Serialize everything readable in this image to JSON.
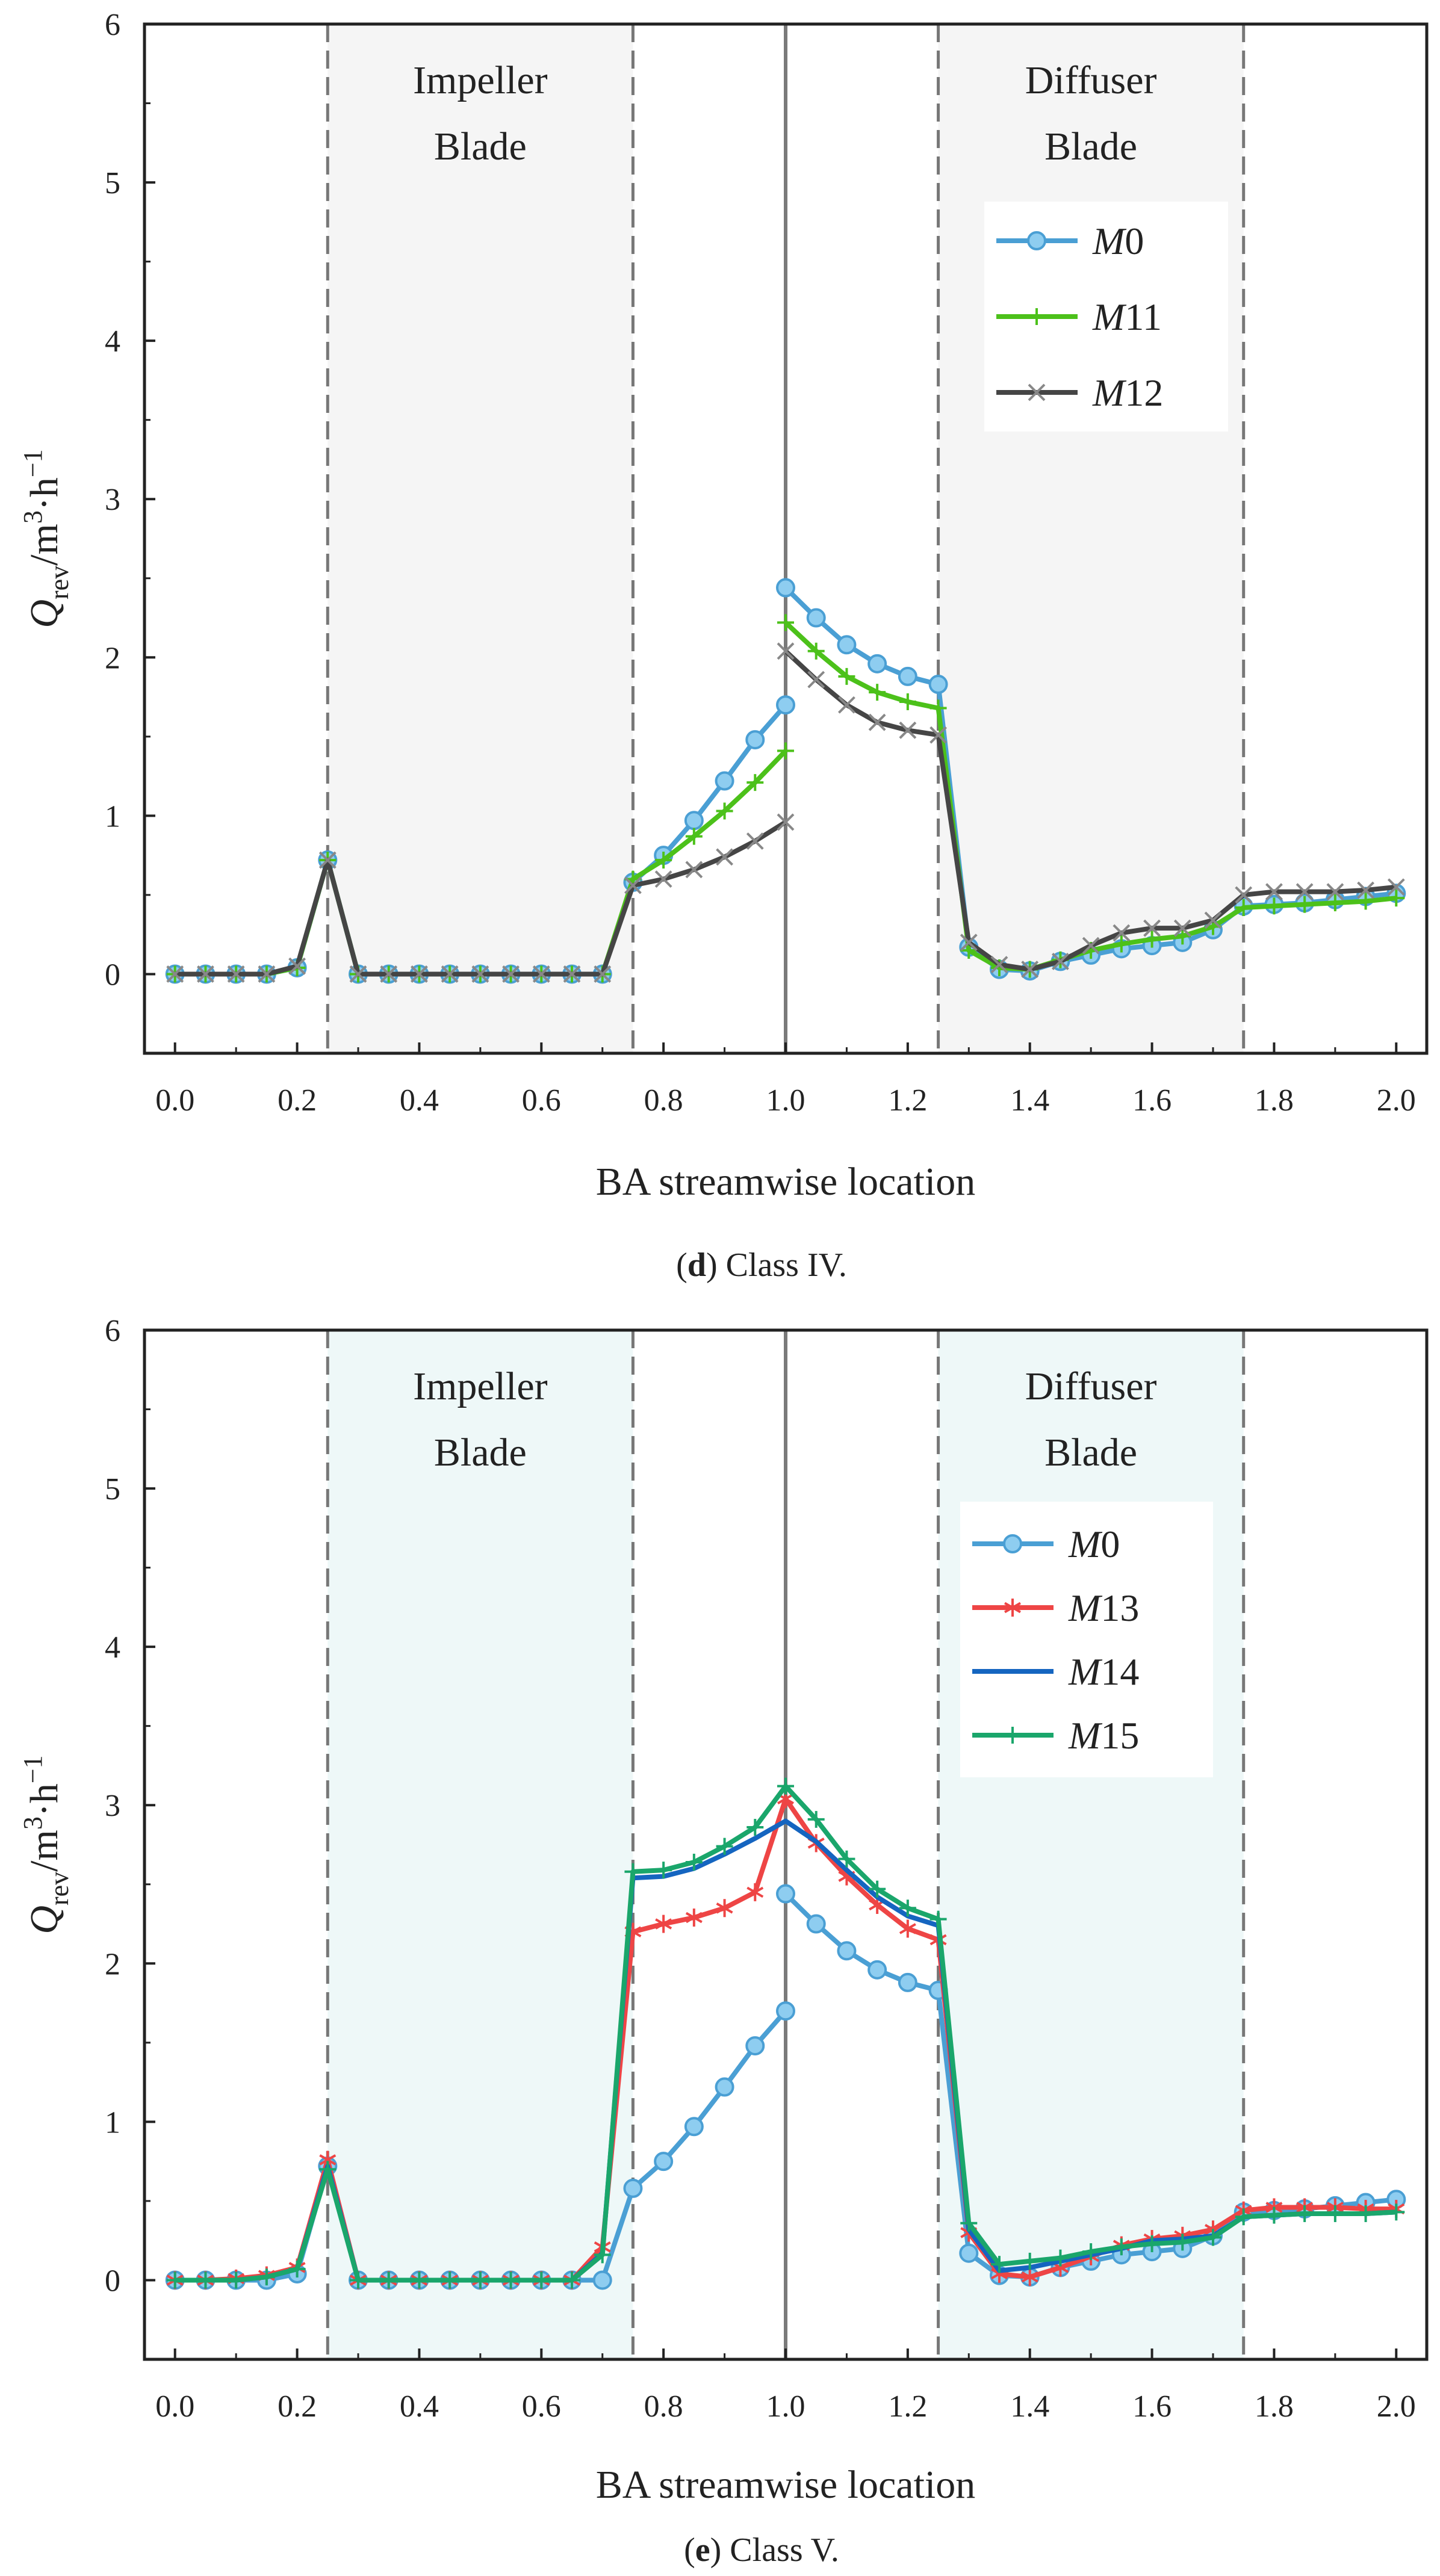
{
  "chart_data": [
    {
      "type": "line",
      "panel_letter": "d",
      "caption": " Class IV.",
      "xlabel": "BA streamwise location",
      "ylabel": "Q_rev/m³·h⁻¹",
      "xlim": [
        -0.05,
        2.05
      ],
      "ylim": [
        -0.5,
        6
      ],
      "xticks": [
        "0.0",
        "0.2",
        "0.4",
        "0.6",
        "0.8",
        "1.0",
        "1.2",
        "1.4",
        "1.6",
        "1.8",
        "2.0"
      ],
      "yticks": [
        "0",
        "1",
        "2",
        "3",
        "4",
        "5",
        "6"
      ],
      "regions": [
        {
          "label_lines": [
            "Impeller",
            "Blade"
          ],
          "x0": 0.25,
          "x1": 0.75,
          "fill": "#f5f5f5"
        },
        {
          "label_lines": [
            "Diffuser",
            "Blade"
          ],
          "x0": 1.25,
          "x1": 1.75,
          "fill": "#f5f5f5"
        }
      ],
      "dashed_lines": [
        0.25,
        0.75,
        1.25,
        1.75
      ],
      "solid_line": 1.0,
      "legend_position": "upper-right",
      "series": [
        {
          "name_italic": "M",
          "name_rest": "0",
          "color": "#4a9fd4",
          "marker": "circle",
          "segments": [
            {
              "x": [
                0.0,
                0.05,
                0.1,
                0.15,
                0.2,
                0.25,
                0.3,
                0.35,
                0.4,
                0.45,
                0.5,
                0.55,
                0.6,
                0.65,
                0.7,
                0.75,
                0.8,
                0.85,
                0.9,
                0.95,
                1.0
              ],
              "y": [
                0,
                0,
                0,
                0,
                0.04,
                0.72,
                0,
                0,
                0,
                0,
                0,
                0,
                0,
                0,
                0,
                0.58,
                0.75,
                0.97,
                1.22,
                1.48,
                1.7
              ]
            },
            {
              "x": [
                1.0,
                1.05,
                1.1,
                1.15,
                1.2,
                1.25,
                1.3,
                1.35,
                1.4,
                1.45,
                1.5,
                1.55,
                1.6,
                1.65,
                1.7,
                1.75,
                1.8,
                1.85,
                1.9,
                1.95,
                2.0
              ],
              "y": [
                2.44,
                2.25,
                2.08,
                1.96,
                1.88,
                1.83,
                0.17,
                0.03,
                0.02,
                0.08,
                0.12,
                0.16,
                0.18,
                0.2,
                0.28,
                0.43,
                0.44,
                0.45,
                0.47,
                0.49,
                0.51
              ]
            }
          ]
        },
        {
          "name_italic": "M",
          "name_rest": "11",
          "color": "#4cc11a",
          "marker": "plus",
          "segments": [
            {
              "x": [
                0.0,
                0.05,
                0.1,
                0.15,
                0.2,
                0.25,
                0.3,
                0.35,
                0.4,
                0.45,
                0.5,
                0.55,
                0.6,
                0.65,
                0.7,
                0.75,
                0.8,
                0.85,
                0.9,
                0.95,
                1.0
              ],
              "y": [
                0,
                0,
                0,
                0,
                0.04,
                0.72,
                0,
                0,
                0,
                0,
                0,
                0,
                0,
                0,
                0,
                0.6,
                0.72,
                0.87,
                1.03,
                1.21,
                1.41
              ]
            },
            {
              "x": [
                1.0,
                1.05,
                1.1,
                1.15,
                1.2,
                1.25,
                1.3,
                1.35,
                1.4,
                1.45,
                1.5,
                1.55,
                1.6,
                1.65,
                1.7,
                1.75,
                1.8,
                1.85,
                1.9,
                1.95,
                2.0
              ],
              "y": [
                2.22,
                2.04,
                1.88,
                1.78,
                1.72,
                1.68,
                0.15,
                0.04,
                0.03,
                0.09,
                0.15,
                0.19,
                0.22,
                0.24,
                0.3,
                0.42,
                0.43,
                0.44,
                0.45,
                0.46,
                0.48
              ]
            }
          ]
        },
        {
          "name_italic": "M",
          "name_rest": "12",
          "color": "#454545",
          "marker": "x",
          "segments": [
            {
              "x": [
                0.0,
                0.05,
                0.1,
                0.15,
                0.2,
                0.25,
                0.3,
                0.35,
                0.4,
                0.45,
                0.5,
                0.55,
                0.6,
                0.65,
                0.7,
                0.75,
                0.8,
                0.85,
                0.9,
                0.95,
                1.0
              ],
              "y": [
                0,
                0,
                0,
                0,
                0.05,
                0.72,
                0,
                0,
                0,
                0,
                0,
                0,
                0,
                0,
                0,
                0.56,
                0.6,
                0.66,
                0.74,
                0.84,
                0.96
              ]
            },
            {
              "x": [
                1.0,
                1.05,
                1.1,
                1.15,
                1.2,
                1.25,
                1.3,
                1.35,
                1.4,
                1.45,
                1.5,
                1.55,
                1.6,
                1.65,
                1.7,
                1.75,
                1.8,
                1.85,
                1.9,
                1.95,
                2.0
              ],
              "y": [
                2.04,
                1.86,
                1.7,
                1.59,
                1.54,
                1.51,
                0.2,
                0.06,
                0.03,
                0.08,
                0.18,
                0.26,
                0.29,
                0.29,
                0.34,
                0.5,
                0.52,
                0.52,
                0.52,
                0.53,
                0.55
              ]
            }
          ]
        }
      ]
    },
    {
      "type": "line",
      "panel_letter": "e",
      "caption": " Class V.",
      "xlabel": "BA streamwise location",
      "ylabel": "Q_rev/m³·h⁻¹",
      "xlim": [
        -0.05,
        2.05
      ],
      "ylim": [
        -0.5,
        6
      ],
      "xticks": [
        "0.0",
        "0.2",
        "0.4",
        "0.6",
        "0.8",
        "1.0",
        "1.2",
        "1.4",
        "1.6",
        "1.8",
        "2.0"
      ],
      "yticks": [
        "0",
        "1",
        "2",
        "3",
        "4",
        "5",
        "6"
      ],
      "regions": [
        {
          "label_lines": [
            "Impeller",
            "Blade"
          ],
          "x0": 0.25,
          "x1": 0.75,
          "fill": "#eef8f8"
        },
        {
          "label_lines": [
            "Diffuser",
            "Blade"
          ],
          "x0": 1.25,
          "x1": 1.75,
          "fill": "#eef8f8"
        }
      ],
      "dashed_lines": [
        0.25,
        0.75,
        1.25,
        1.75
      ],
      "solid_line": 1.0,
      "legend_position": "middle-right",
      "series": [
        {
          "name_italic": "M",
          "name_rest": "0",
          "color": "#4a9fd4",
          "marker": "circle",
          "segments": [
            {
              "x": [
                0.0,
                0.05,
                0.1,
                0.15,
                0.2,
                0.25,
                0.3,
                0.35,
                0.4,
                0.45,
                0.5,
                0.55,
                0.6,
                0.65,
                0.7,
                0.75,
                0.8,
                0.85,
                0.9,
                0.95,
                1.0
              ],
              "y": [
                0,
                0,
                0,
                0,
                0.04,
                0.72,
                0,
                0,
                0,
                0,
                0,
                0,
                0,
                0,
                0,
                0.58,
                0.75,
                0.97,
                1.22,
                1.48,
                1.7
              ]
            },
            {
              "x": [
                1.0,
                1.05,
                1.1,
                1.15,
                1.2,
                1.25,
                1.3,
                1.35,
                1.4,
                1.45,
                1.5,
                1.55,
                1.6,
                1.65,
                1.7,
                1.75,
                1.8,
                1.85,
                1.9,
                1.95,
                2.0
              ],
              "y": [
                2.44,
                2.25,
                2.08,
                1.96,
                1.88,
                1.83,
                0.17,
                0.03,
                0.02,
                0.08,
                0.12,
                0.16,
                0.18,
                0.2,
                0.28,
                0.43,
                0.44,
                0.45,
                0.47,
                0.49,
                0.51
              ]
            }
          ]
        },
        {
          "name_italic": "M",
          "name_rest": "13",
          "color": "#ee4545",
          "marker": "star",
          "segments": [
            {
              "x": [
                0.0,
                0.05,
                0.1,
                0.15,
                0.2,
                0.25,
                0.3,
                0.35,
                0.4,
                0.45,
                0.5,
                0.55,
                0.6,
                0.65,
                0.7,
                0.75,
                0.8,
                0.85,
                0.9,
                0.95,
                1.0,
                1.05,
                1.1,
                1.15,
                1.2,
                1.25,
                1.3,
                1.35,
                1.4,
                1.45,
                1.5,
                1.55,
                1.6,
                1.65,
                1.7,
                1.75,
                1.8,
                1.85,
                1.9,
                1.95,
                2.0
              ],
              "y": [
                0,
                0,
                0.01,
                0.03,
                0.08,
                0.76,
                0,
                0,
                0,
                0,
                0,
                0,
                0,
                0,
                0.21,
                2.2,
                2.25,
                2.29,
                2.35,
                2.45,
                3.04,
                2.76,
                2.55,
                2.37,
                2.22,
                2.15,
                0.3,
                0.04,
                0.02,
                0.08,
                0.15,
                0.22,
                0.26,
                0.28,
                0.32,
                0.44,
                0.46,
                0.46,
                0.46,
                0.45,
                0.45
              ]
            }
          ]
        },
        {
          "name_italic": "M",
          "name_rest": "14",
          "color": "#1565c0",
          "marker": "none",
          "segments": [
            {
              "x": [
                0.0,
                0.05,
                0.1,
                0.15,
                0.2,
                0.25,
                0.3,
                0.35,
                0.4,
                0.45,
                0.5,
                0.55,
                0.6,
                0.65,
                0.7,
                0.75,
                0.8,
                0.85,
                0.9,
                0.95,
                1.0,
                1.05,
                1.1,
                1.15,
                1.2,
                1.25,
                1.3,
                1.35,
                1.4,
                1.45,
                1.5,
                1.55,
                1.6,
                1.65,
                1.7,
                1.75,
                1.8,
                1.85,
                1.9,
                1.95,
                2.0
              ],
              "y": [
                0,
                0,
                0,
                0.02,
                0.07,
                0.72,
                0,
                0,
                0,
                0,
                0,
                0,
                0,
                0,
                0.17,
                2.54,
                2.55,
                2.6,
                2.69,
                2.79,
                2.9,
                2.77,
                2.59,
                2.42,
                2.3,
                2.24,
                0.32,
                0.06,
                0.08,
                0.12,
                0.16,
                0.2,
                0.25,
                0.26,
                0.28,
                0.4,
                0.41,
                0.42,
                0.42,
                0.42,
                0.43
              ]
            }
          ]
        },
        {
          "name_italic": "M",
          "name_rest": "15",
          "color": "#1aa66b",
          "marker": "plus",
          "segments": [
            {
              "x": [
                0.0,
                0.05,
                0.1,
                0.15,
                0.2,
                0.25,
                0.3,
                0.35,
                0.4,
                0.45,
                0.5,
                0.55,
                0.6,
                0.65,
                0.7,
                0.75,
                0.8,
                0.85,
                0.9,
                0.95,
                1.0,
                1.05,
                1.1,
                1.15,
                1.2,
                1.25,
                1.3,
                1.35,
                1.4,
                1.45,
                1.5,
                1.55,
                1.6,
                1.65,
                1.7,
                1.75,
                1.8,
                1.85,
                1.9,
                1.95,
                2.0
              ],
              "y": [
                0,
                0,
                0,
                0.02,
                0.07,
                0.7,
                0,
                0,
                0,
                0,
                0,
                0,
                0,
                0,
                0.16,
                2.58,
                2.59,
                2.64,
                2.74,
                2.86,
                3.12,
                2.91,
                2.66,
                2.47,
                2.35,
                2.28,
                0.36,
                0.1,
                0.12,
                0.14,
                0.18,
                0.21,
                0.23,
                0.24,
                0.27,
                0.4,
                0.41,
                0.42,
                0.42,
                0.42,
                0.43
              ]
            }
          ]
        }
      ]
    }
  ]
}
